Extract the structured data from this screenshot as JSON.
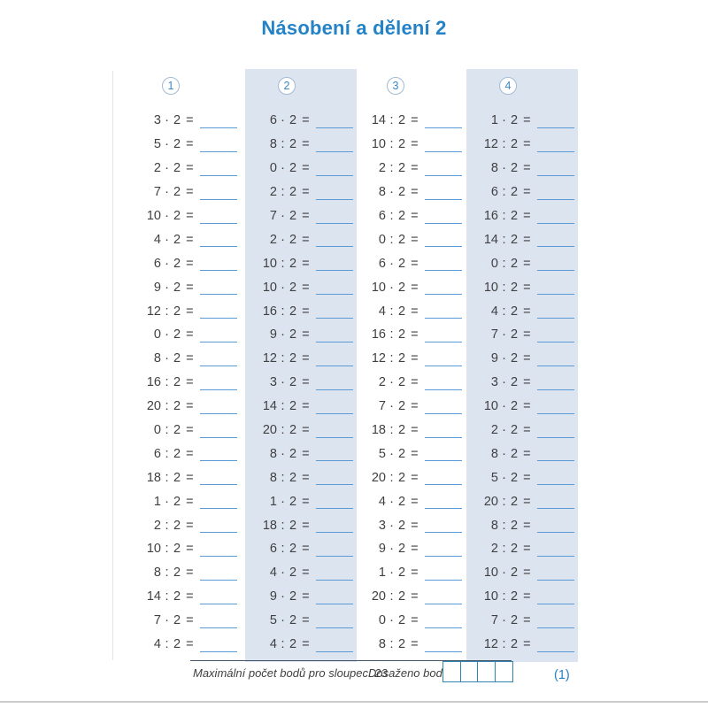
{
  "title": "Násobení a dělení 2",
  "worksheet": {
    "equals_sign": "=",
    "columns": [
      {
        "number": "1",
        "exercises": [
          "3 · 2",
          "5 · 2",
          "2 · 2",
          "7 · 2",
          "10 · 2",
          "4 · 2",
          "6 · 2",
          "9 · 2",
          "12 : 2",
          "0 · 2",
          "8 · 2",
          "16 : 2",
          "20 : 2",
          "0 : 2",
          "6 : 2",
          "18 : 2",
          "1 · 2",
          "2 : 2",
          "10 : 2",
          "8 : 2",
          "14 : 2",
          "7 · 2",
          "4 : 2"
        ]
      },
      {
        "number": "2",
        "exercises": [
          "6 · 2",
          "8 : 2",
          "0 · 2",
          "2 : 2",
          "7 · 2",
          "2 · 2",
          "10 : 2",
          "10 · 2",
          "16 : 2",
          "9 · 2",
          "12 : 2",
          "3 · 2",
          "14 : 2",
          "20 : 2",
          "8 · 2",
          "8 : 2",
          "1 · 2",
          "18 : 2",
          "6 : 2",
          "4 · 2",
          "9 · 2",
          "5 · 2",
          "4 : 2"
        ]
      },
      {
        "number": "3",
        "exercises": [
          "14 : 2",
          "10 : 2",
          "2 : 2",
          "8 · 2",
          "6 : 2",
          "0 : 2",
          "6 · 2",
          "10 · 2",
          "4 : 2",
          "16 : 2",
          "12 : 2",
          "2 · 2",
          "7 · 2",
          "18 : 2",
          "5 · 2",
          "20 : 2",
          "4 · 2",
          "3 · 2",
          "9 · 2",
          "1 · 2",
          "20 : 2",
          "0 · 2",
          "8 : 2"
        ]
      },
      {
        "number": "4",
        "exercises": [
          "1 · 2",
          "12 : 2",
          "8 · 2",
          "6 : 2",
          "16 : 2",
          "14 : 2",
          "0 : 2",
          "10 : 2",
          "4 : 2",
          "7 · 2",
          "9 · 2",
          "3 · 2",
          "10 · 2",
          "2 · 2",
          "8 · 2",
          "5 · 2",
          "20 : 2",
          "8 : 2",
          "2 : 2",
          "10 · 2",
          "10 : 2",
          "7 · 2",
          "12 : 2"
        ]
      }
    ]
  },
  "footer": {
    "max_points_text": "Maximální počet bodů pro sloupec: 23",
    "achieved_points_label": "Dosaženo bodů:",
    "score_box_count": 4,
    "page_number": "(1)"
  },
  "colors": {
    "title_blue": "#2383c6",
    "column_shade": "#dce4f0",
    "answer_line_blue": "#5b9bd5",
    "circle_border": "#a3bbd4",
    "circle_text": "#3d88c4",
    "expression_text": "#404040",
    "footer_rule": "#44546a",
    "score_box_border": "#2e86b0",
    "page_number_blue": "#2383c6",
    "bottom_rule_gray": "#cbcbcb"
  }
}
